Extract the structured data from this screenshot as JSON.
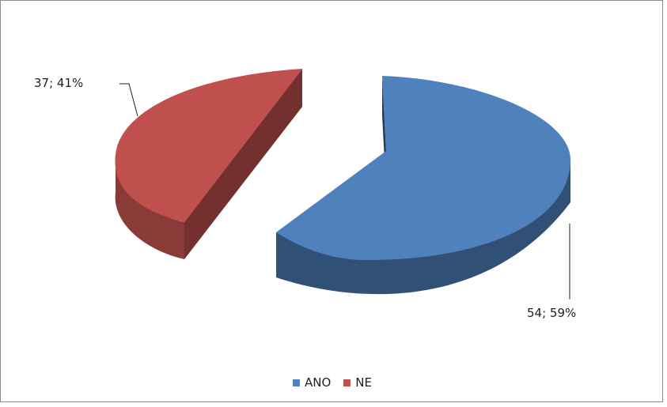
{
  "chart_data": {
    "type": "pie",
    "title": "",
    "slices": [
      {
        "label": "ANO",
        "value": 54,
        "percent": 59,
        "data_label": "54; 59%",
        "color": "#4f81bd"
      },
      {
        "label": "NE",
        "value": 37,
        "percent": 41,
        "data_label": "37; 41%",
        "color": "#c0504d"
      }
    ],
    "legend_position": "bottom",
    "exploded": true,
    "three_d": true
  }
}
